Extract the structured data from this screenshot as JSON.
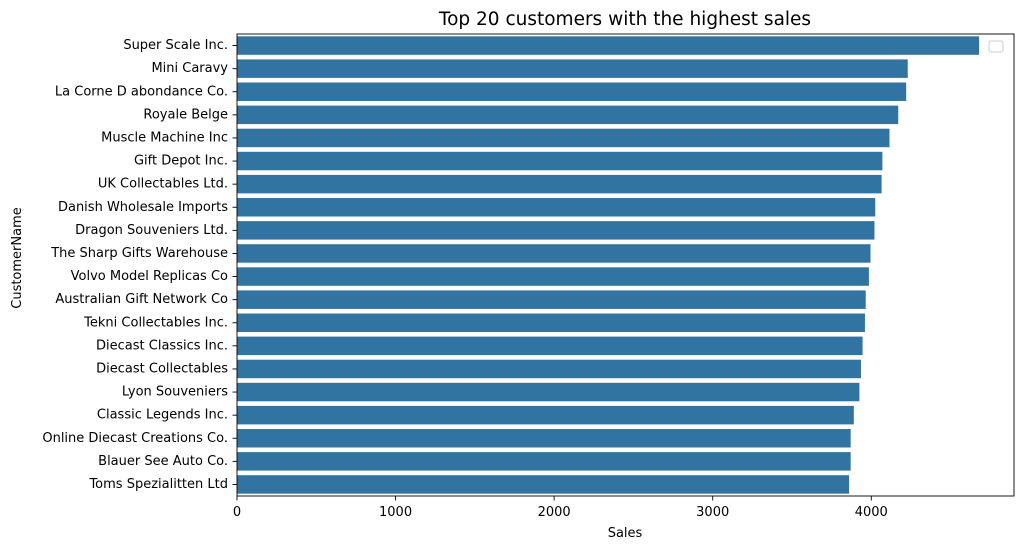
{
  "chart_data": {
    "type": "bar",
    "orientation": "horizontal",
    "title": "Top 20 customers with the highest sales",
    "xlabel": "Sales",
    "ylabel": "CustomerName",
    "xlim": [
      0,
      4900
    ],
    "xticks": [
      0,
      1000,
      2000,
      3000,
      4000
    ],
    "grid": false,
    "legend": "top-right (empty)",
    "bar_color": "#3274a1",
    "categories": [
      "Super Scale Inc.",
      "Mini Caravy",
      "La Corne D abondance  Co.",
      "Royale Belge",
      "Muscle Machine Inc",
      "Gift Depot Inc.",
      "UK Collectables  Ltd.",
      "Danish Wholesale Imports",
      "Dragon Souveniers  Ltd.",
      "The Sharp Gifts Warehouse",
      "Volvo Model Replicas  Co",
      "Australian Gift Network  Co",
      "Tekni Collectables Inc.",
      "Diecast Classics Inc.",
      "Diecast Collectables",
      "Lyon Souveniers",
      "Classic Legends Inc.",
      "Online Diecast Creations Co.",
      "Blauer See Auto  Co.",
      "Toms Spezialitten  Ltd"
    ],
    "values": [
      4680,
      4230,
      4220,
      4170,
      4115,
      4070,
      4065,
      4025,
      4020,
      3995,
      3985,
      3965,
      3960,
      3945,
      3935,
      3925,
      3890,
      3870,
      3870,
      3860
    ]
  }
}
